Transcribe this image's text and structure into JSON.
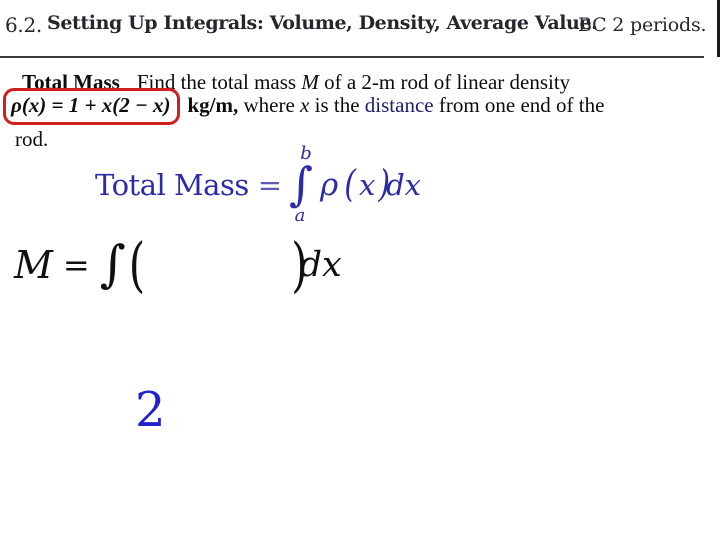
{
  "header": {
    "section": "6.2.",
    "title": "Setting Up Integrals: Volume, Density, Average Value.",
    "periods": "BC 2 periods."
  },
  "problem": {
    "heading": "Total Mass",
    "line1_pre": "Find the total mass ",
    "line1_var": "M",
    "line1_post": " of a 2-m rod of linear density",
    "boxed_formula": "ρ(x) = 1 + x(2 − x)",
    "units": "kg/m,",
    "line2_pre": " where ",
    "line2_var": "x",
    "line2_mid": " is the ",
    "line2_distance": "distance",
    "line2_post": " from one end of the",
    "line3": "rod."
  },
  "formula_total_mass": {
    "label": "Total Mass",
    "equals": "=",
    "upper_limit": "b",
    "integral_sign": "∫",
    "lower_limit": "a",
    "rho": "ρ",
    "lparen": "(",
    "var": "x",
    "rparen": ")",
    "dx": "dx"
  },
  "formula_m": {
    "var": "M",
    "equals": "=",
    "integral_sign": "∫",
    "lparen": "(",
    "rparen": ")",
    "dx": "dx"
  },
  "answer": {
    "value": "2"
  },
  "colors": {
    "formula_blue": "#2b2baa",
    "answer_blue": "#2222cc",
    "highlight_red": "#cf1f1f",
    "distance_navy": "#1c1c6e",
    "header_text": "#26262e"
  }
}
